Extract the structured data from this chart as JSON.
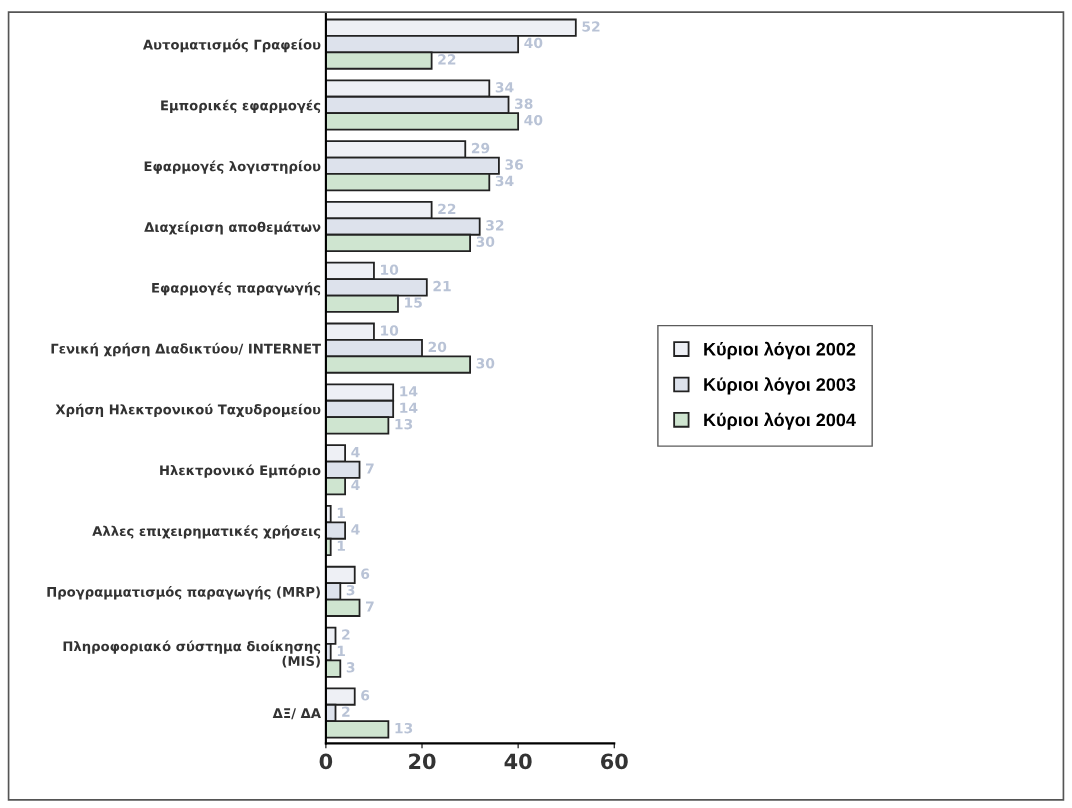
{
  "chart_data": {
    "type": "bar",
    "orientation": "horizontal",
    "categories": [
      "Αυτοματισμός Γραφείου",
      "Εμπορικές εφαρμογές",
      "Εφαρμογές λογιστηρίου",
      "Διαχείριση αποθεμάτων",
      "Εφαρμογές παραγωγής",
      "Γενική χρήση Διαδικτύου/ INTERNET",
      "Χρήση Ηλεκτρονικού Ταχυδρομείου",
      "Ηλεκτρονικό Εμπόριο",
      "Αλλες επιχειρηματικές χρήσεις",
      "Προγραμματισμός παραγωγής (MRP)",
      "Πληροφοριακό σύστημα διοίκησης\n(MIS)",
      "ΔΞ/ ΔΑ"
    ],
    "series": [
      {
        "name": "Κύριοι λόγοι 2002",
        "color": "#eef0f5",
        "values": [
          52,
          34,
          29,
          22,
          10,
          10,
          14,
          4,
          1,
          6,
          2,
          6
        ]
      },
      {
        "name": "Κύριοι λόγοι 2003",
        "color": "#dde2ec",
        "values": [
          40,
          38,
          36,
          32,
          21,
          20,
          14,
          7,
          4,
          3,
          1,
          2
        ]
      },
      {
        "name": "Κύριοι λόγοι 2004",
        "color": "#cfe5d0",
        "values": [
          22,
          40,
          34,
          30,
          15,
          30,
          13,
          4,
          1,
          7,
          3,
          13
        ]
      }
    ],
    "xlim": [
      0,
      60
    ],
    "xticks": [
      0,
      20,
      40,
      60
    ],
    "grid": false,
    "legend": "right",
    "data_labels": true
  }
}
